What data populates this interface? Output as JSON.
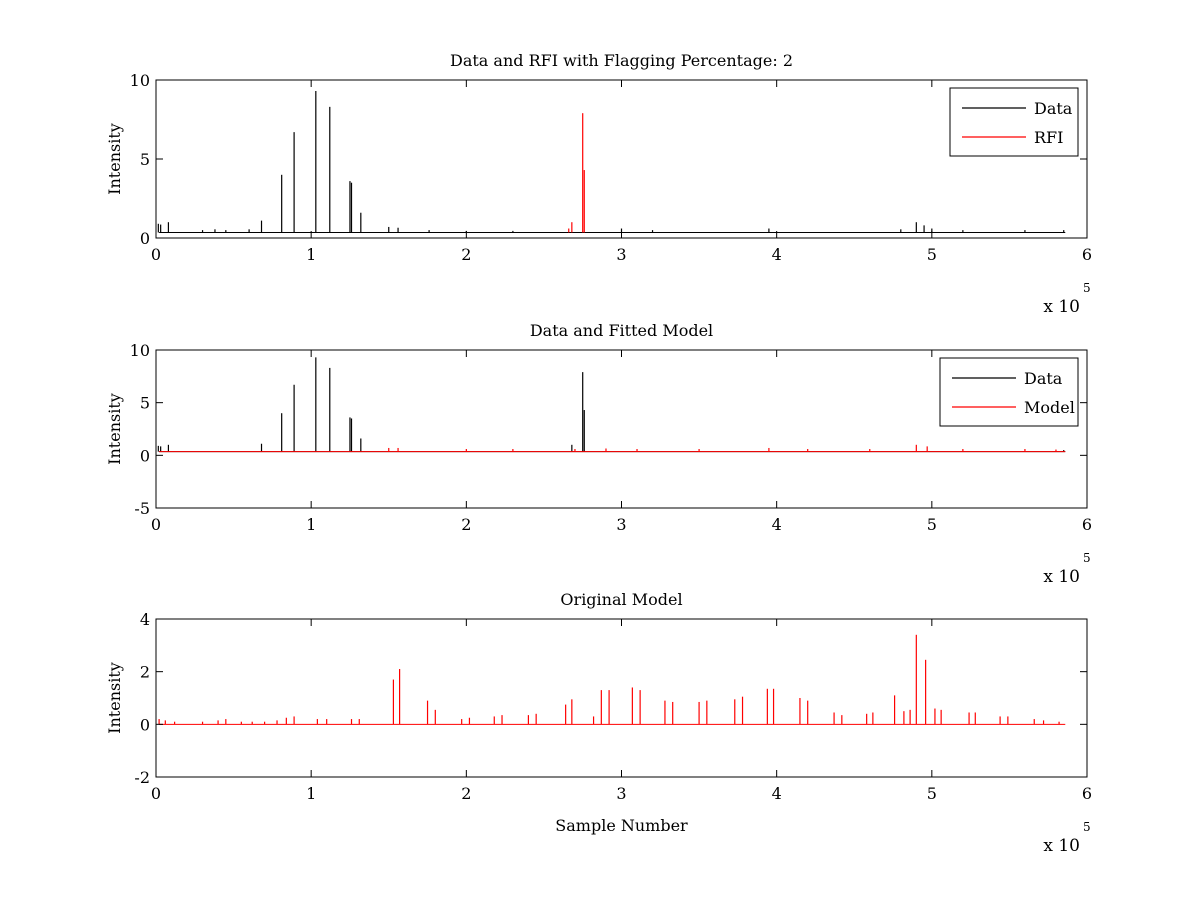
{
  "figure": {
    "background": "#ffffff",
    "colors": {
      "data": "#000000",
      "rfi": "#ff0000",
      "model": "#ff0000"
    }
  },
  "chart_data": [
    {
      "type": "line",
      "title": "Data and RFI with Flagging Percentage: 2",
      "xlabel": "",
      "ylabel": "Intensity",
      "xlim": [
        0,
        600000
      ],
      "ylim": [
        0,
        10
      ],
      "x_ticks": [
        "0",
        "1",
        "2",
        "3",
        "4",
        "5",
        "6"
      ],
      "y_ticks": [
        "0",
        "5",
        "10"
      ],
      "x_exponent": {
        "base": "x 10",
        "power": "5"
      },
      "legend": {
        "position": "top-right",
        "entries": [
          "Data",
          "RFI"
        ]
      },
      "baseline": 0.35,
      "series": [
        {
          "name": "Data",
          "color": "#000000",
          "peaks": [
            [
              1500,
              0.9
            ],
            [
              3000,
              0.85
            ],
            [
              8000,
              1.0
            ],
            [
              30000,
              0.5
            ],
            [
              38000,
              0.55
            ],
            [
              45000,
              0.5
            ],
            [
              60000,
              0.55
            ],
            [
              68000,
              1.1
            ],
            [
              81000,
              4.0
            ],
            [
              89000,
              6.7
            ],
            [
              103000,
              9.3
            ],
            [
              112000,
              8.3
            ],
            [
              125000,
              3.6
            ],
            [
              126000,
              3.5
            ],
            [
              132000,
              1.6
            ],
            [
              150000,
              0.7
            ],
            [
              156000,
              0.65
            ],
            [
              176000,
              0.5
            ],
            [
              200000,
              0.45
            ],
            [
              230000,
              0.45
            ],
            [
              300000,
              0.6
            ],
            [
              320000,
              0.5
            ],
            [
              395000,
              0.6
            ],
            [
              480000,
              0.55
            ],
            [
              490000,
              1.0
            ],
            [
              495000,
              0.8
            ],
            [
              500000,
              0.6
            ],
            [
              520000,
              0.5
            ],
            [
              560000,
              0.5
            ],
            [
              585000,
              0.5
            ]
          ]
        },
        {
          "name": "RFI",
          "color": "#ff0000",
          "peaks": [
            [
              266000,
              0.6
            ],
            [
              268000,
              1.0
            ],
            [
              275000,
              7.9
            ],
            [
              276000,
              4.3
            ]
          ]
        }
      ]
    },
    {
      "type": "line",
      "title": "Data and Fitted Model",
      "xlabel": "",
      "ylabel": "Intensity",
      "xlim": [
        0,
        600000
      ],
      "ylim": [
        -5,
        10
      ],
      "x_ticks": [
        "0",
        "1",
        "2",
        "3",
        "4",
        "5",
        "6"
      ],
      "y_ticks": [
        "-5",
        "0",
        "5",
        "10"
      ],
      "x_exponent": {
        "base": "x 10",
        "power": "5"
      },
      "legend": {
        "position": "top-right",
        "entries": [
          "Data",
          "Model"
        ]
      },
      "baseline": 0.35,
      "series": [
        {
          "name": "Data",
          "color": "#000000",
          "peaks": [
            [
              1500,
              0.9
            ],
            [
              3000,
              0.85
            ],
            [
              8000,
              1.0
            ],
            [
              68000,
              1.1
            ],
            [
              81000,
              4.0
            ],
            [
              89000,
              6.7
            ],
            [
              103000,
              9.3
            ],
            [
              112000,
              8.3
            ],
            [
              125000,
              3.6
            ],
            [
              126000,
              3.5
            ],
            [
              132000,
              1.6
            ],
            [
              268000,
              1.0
            ],
            [
              275000,
              7.9
            ],
            [
              276000,
              4.3
            ],
            [
              585000,
              0.5
            ]
          ]
        },
        {
          "name": "Model",
          "color": "#ff0000",
          "peaks": [
            [
              150000,
              0.7
            ],
            [
              156000,
              0.7
            ],
            [
              200000,
              0.6
            ],
            [
              230000,
              0.6
            ],
            [
              270000,
              0.6
            ],
            [
              290000,
              0.65
            ],
            [
              310000,
              0.6
            ],
            [
              350000,
              0.6
            ],
            [
              395000,
              0.7
            ],
            [
              420000,
              0.6
            ],
            [
              460000,
              0.6
            ],
            [
              490000,
              1.0
            ],
            [
              497000,
              0.85
            ],
            [
              520000,
              0.6
            ],
            [
              560000,
              0.6
            ],
            [
              580000,
              0.55
            ]
          ]
        }
      ]
    },
    {
      "type": "line",
      "title": "Original Model",
      "xlabel": "Sample Number",
      "ylabel": "Intensity",
      "xlim": [
        0,
        600000
      ],
      "ylim": [
        -2,
        4
      ],
      "x_ticks": [
        "0",
        "1",
        "2",
        "3",
        "4",
        "5",
        "6"
      ],
      "y_ticks": [
        "-2",
        "0",
        "2",
        "4"
      ],
      "x_exponent": {
        "base": "x 10",
        "power": "5"
      },
      "legend": null,
      "baseline": 0,
      "series": [
        {
          "name": "",
          "color": "#ff0000",
          "peaks": [
            [
              2000,
              0.2
            ],
            [
              6000,
              0.15
            ],
            [
              12000,
              0.1
            ],
            [
              30000,
              0.1
            ],
            [
              40000,
              0.15
            ],
            [
              45000,
              0.2
            ],
            [
              55000,
              0.1
            ],
            [
              62000,
              0.1
            ],
            [
              70000,
              0.1
            ],
            [
              78000,
              0.15
            ],
            [
              84000,
              0.25
            ],
            [
              89000,
              0.3
            ],
            [
              104000,
              0.2
            ],
            [
              110000,
              0.2
            ],
            [
              126000,
              0.2
            ],
            [
              131000,
              0.2
            ],
            [
              153000,
              1.7
            ],
            [
              157000,
              2.1
            ],
            [
              175000,
              0.9
            ],
            [
              180000,
              0.55
            ],
            [
              197000,
              0.2
            ],
            [
              202000,
              0.25
            ],
            [
              218000,
              0.3
            ],
            [
              223000,
              0.35
            ],
            [
              240000,
              0.35
            ],
            [
              245000,
              0.4
            ],
            [
              264000,
              0.75
            ],
            [
              268000,
              0.95
            ],
            [
              282000,
              0.3
            ],
            [
              287000,
              1.3
            ],
            [
              292000,
              1.3
            ],
            [
              307000,
              1.4
            ],
            [
              312000,
              1.3
            ],
            [
              328000,
              0.9
            ],
            [
              333000,
              0.85
            ],
            [
              350000,
              0.85
            ],
            [
              355000,
              0.9
            ],
            [
              373000,
              0.95
            ],
            [
              378000,
              1.05
            ],
            [
              394000,
              1.35
            ],
            [
              398000,
              1.35
            ],
            [
              415000,
              1.0
            ],
            [
              420000,
              0.9
            ],
            [
              437000,
              0.45
            ],
            [
              442000,
              0.35
            ],
            [
              458000,
              0.4
            ],
            [
              462000,
              0.45
            ],
            [
              476000,
              1.1
            ],
            [
              482000,
              0.5
            ],
            [
              486000,
              0.55
            ],
            [
              490000,
              3.4
            ],
            [
              496000,
              2.45
            ],
            [
              502000,
              0.6
            ],
            [
              506000,
              0.55
            ],
            [
              524000,
              0.45
            ],
            [
              528000,
              0.45
            ],
            [
              544000,
              0.3
            ],
            [
              549000,
              0.3
            ],
            [
              566000,
              0.2
            ],
            [
              572000,
              0.15
            ],
            [
              582000,
              0.1
            ]
          ]
        }
      ]
    }
  ]
}
